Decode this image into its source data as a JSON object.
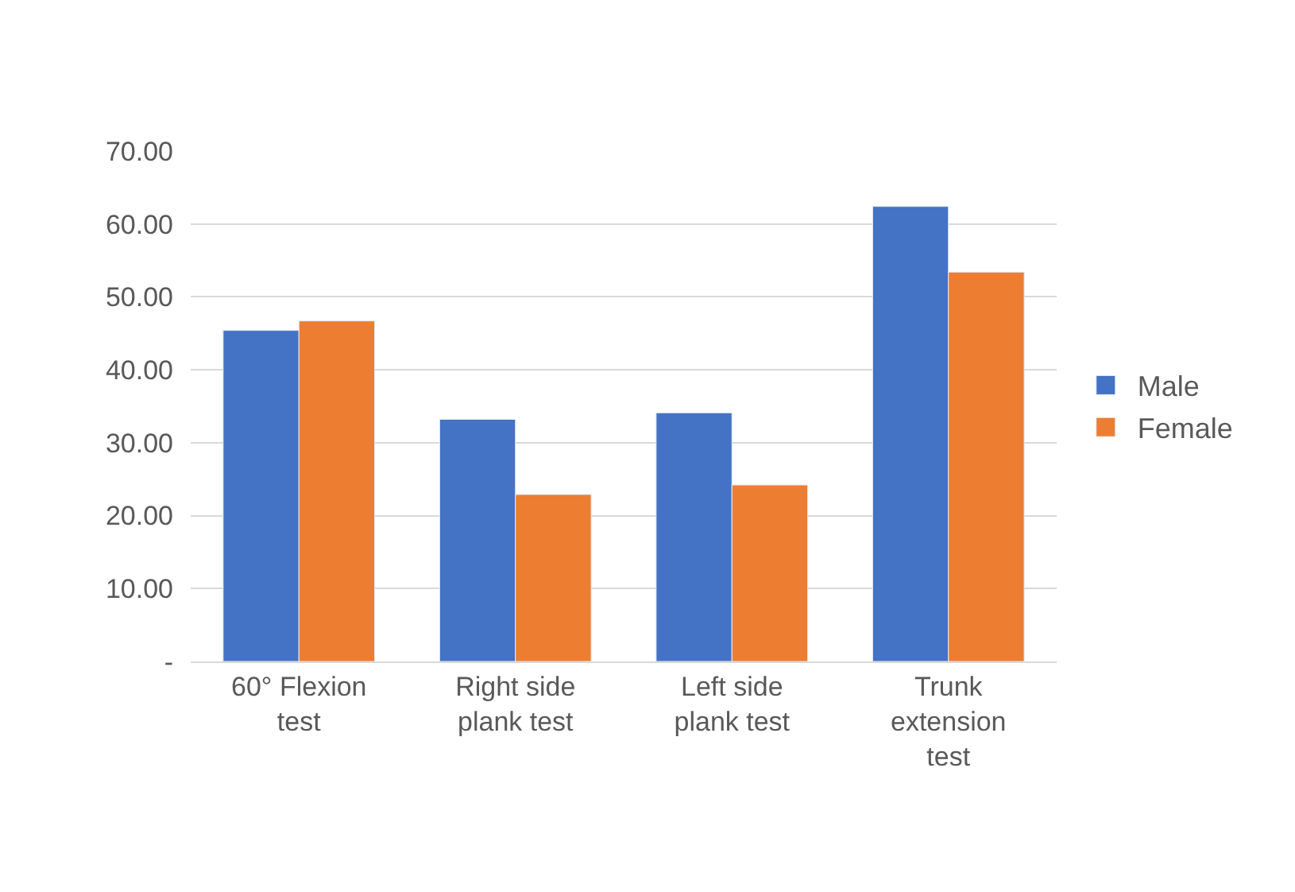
{
  "chart_data": {
    "type": "bar",
    "categories": [
      "60° Flexion test",
      "Right side plank test",
      "Left side plank test",
      "Trunk extension test"
    ],
    "series": [
      {
        "name": "Male",
        "color": "#4472c4",
        "values": [
          45.4,
          33.2,
          34.1,
          62.4
        ]
      },
      {
        "name": "Female",
        "color": "#ed7d31",
        "values": [
          46.7,
          22.9,
          24.2,
          53.4
        ]
      }
    ],
    "ylim": [
      0,
      70
    ],
    "yticks": [
      {
        "value": 0,
        "label": "-"
      },
      {
        "value": 10,
        "label": "10.00"
      },
      {
        "value": 20,
        "label": "20.00"
      },
      {
        "value": 30,
        "label": "30.00"
      },
      {
        "value": 40,
        "label": "40.00"
      },
      {
        "value": 50,
        "label": "50.00"
      },
      {
        "value": 60,
        "label": "60.00"
      },
      {
        "value": 70,
        "label": "70.00"
      }
    ],
    "grid": "y",
    "legend": "right"
  }
}
